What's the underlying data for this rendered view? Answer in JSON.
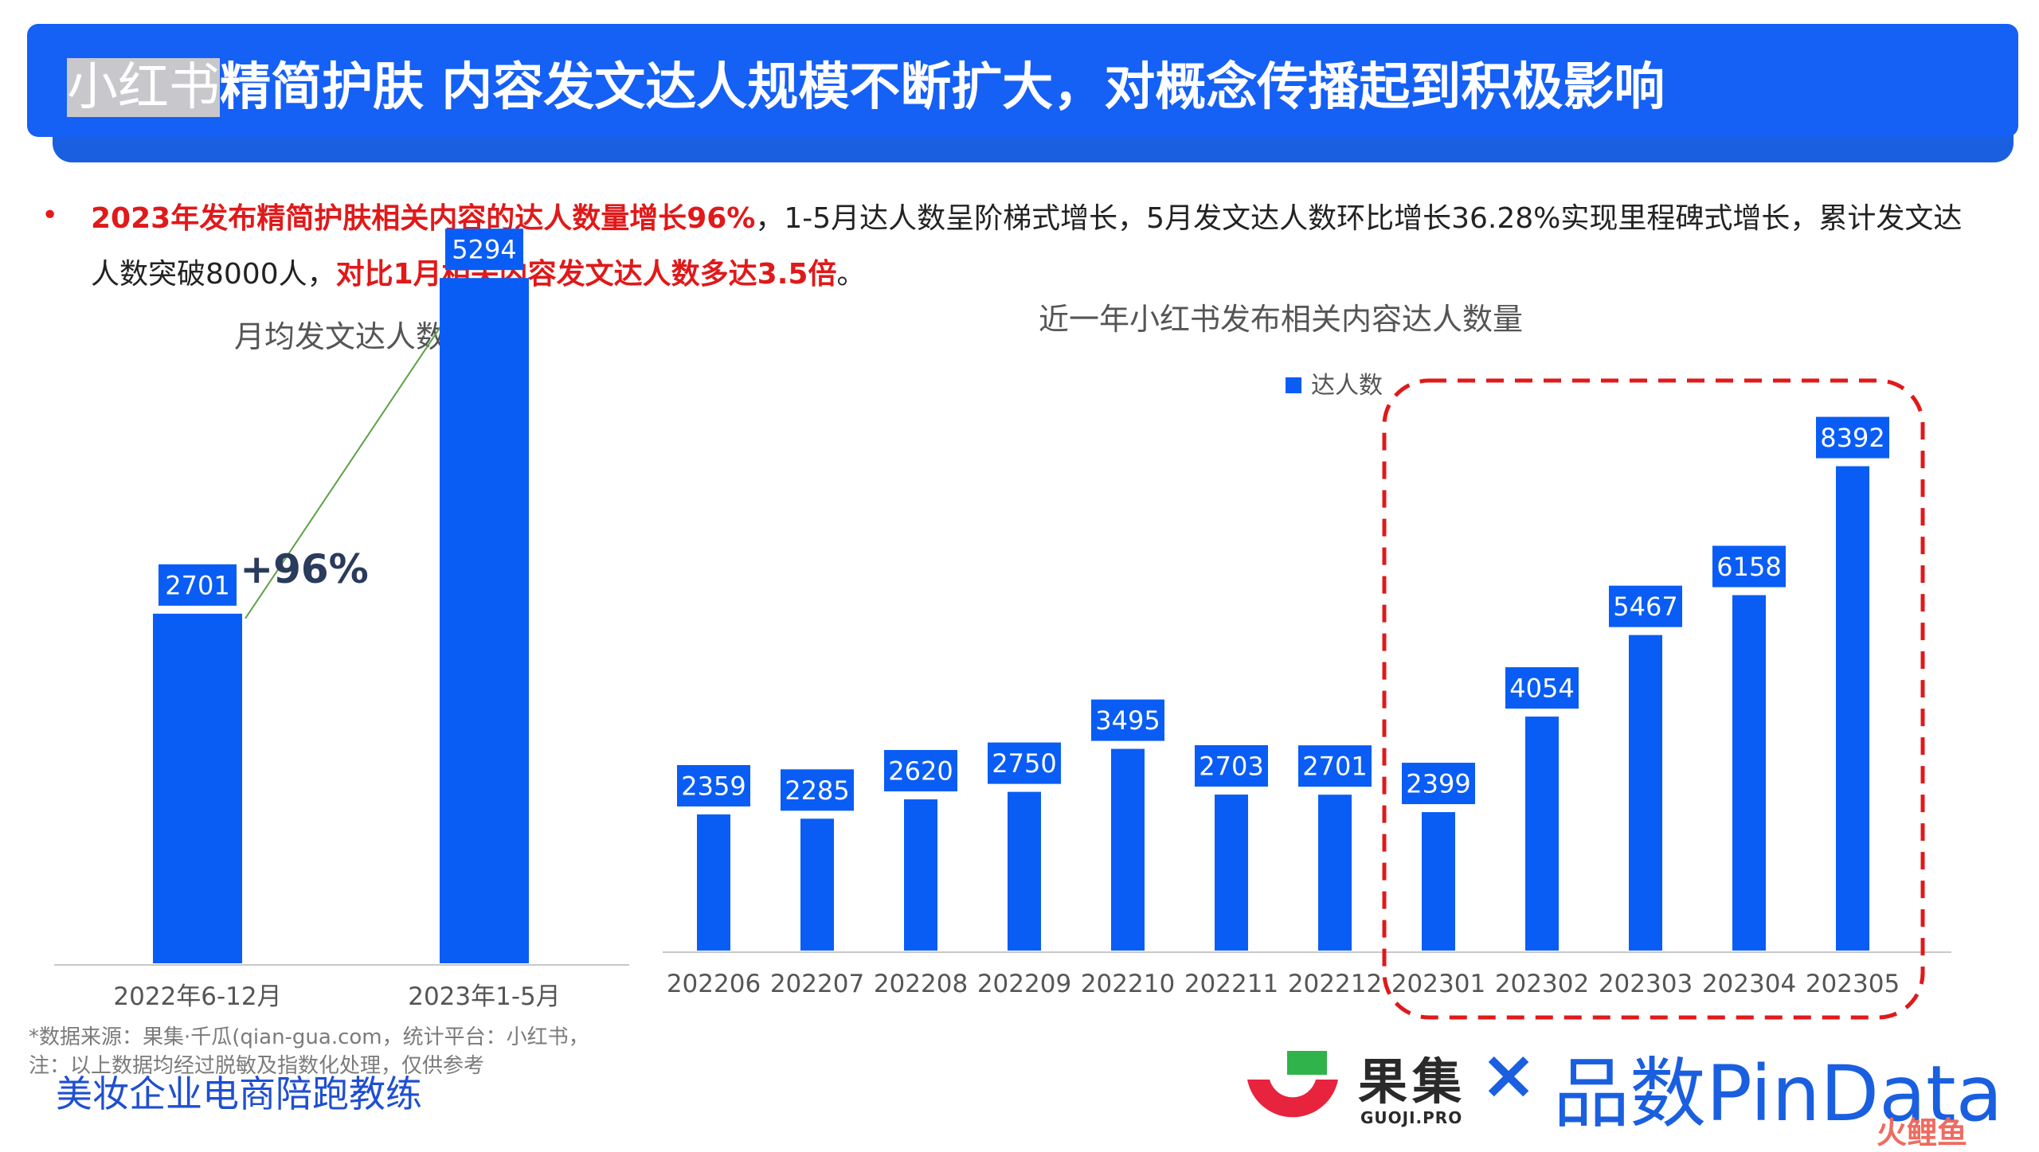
{
  "header": {
    "title_prefix": "小红书",
    "title_main": "精简护肤 内容发文达人规模不断扩大，对概念传播起到积极影响"
  },
  "summary": {
    "red1": "2023年发布精简护肤相关内容的达人数量增长96%",
    "plain1": "，1-5月达人数呈阶梯式增长，5月发文达人数环比增长36.28%实现里程碑式增长，累计发文达人数突破8000人，",
    "red2": "对比1月相关内容发文达人数多达3.5倍",
    "plain2": "。"
  },
  "left_chart": {
    "title": "月均发文达人数",
    "growth_label": "+96%"
  },
  "right_chart": {
    "title": "近一年小红书发布相关内容达人数量",
    "legend": "达人数"
  },
  "chart_data": [
    {
      "type": "bar",
      "title": "月均发文达人数",
      "categories": [
        "2022年6-12月",
        "2023年1-5月"
      ],
      "values": [
        2701,
        5294
      ],
      "annotations": [
        "+96%"
      ],
      "ylim": [
        0,
        5800
      ],
      "color": "#0a5df4"
    },
    {
      "type": "bar",
      "title": "近一年小红书发布相关内容达人数量",
      "categories": [
        "202206",
        "202207",
        "202208",
        "202209",
        "202210",
        "202211",
        "202212",
        "202301",
        "202302",
        "202303",
        "202304",
        "202305"
      ],
      "series": [
        {
          "name": "达人数",
          "values": [
            2359,
            2285,
            2620,
            2750,
            3495,
            2703,
            2701,
            2399,
            4054,
            5467,
            6158,
            8392
          ]
        }
      ],
      "legend_position": "top",
      "highlight_range": [
        "202301",
        "202305"
      ],
      "ylim": [
        0,
        9000
      ],
      "color": "#0a5df4"
    }
  ],
  "footer": {
    "source_line": "*数据来源：果集·千瓜(qian-gua.com，统计平台：小红书，",
    "note_line": "注：以上数据均经过脱敏及指数化处理，仅供参考",
    "coach_text": "美妆企业电商陪跑教练",
    "guoji_name": "果集",
    "guoji_sub": "GUOJI.PRO",
    "cross": "×",
    "pindata": "品数PinData",
    "watermark": "火鲤鱼"
  },
  "colors": {
    "banner": "#1560f5",
    "bar": "#0a5df4",
    "highlight_border": "#e0191a",
    "emphasis_text": "#e0191a"
  }
}
